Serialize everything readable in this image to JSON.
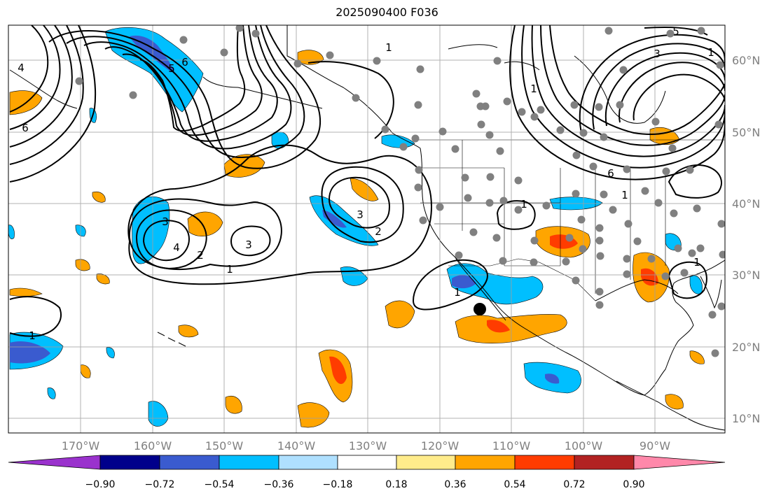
{
  "title": "2025090400 F036",
  "map": {
    "projection": "lat-lon",
    "lon_range": [
      -180,
      -80
    ],
    "lat_range": [
      8,
      65
    ],
    "lon_ticks": [
      "170°W",
      "160°W",
      "150°W",
      "140°W",
      "130°W",
      "120°W",
      "110°W",
      "100°W",
      "90°W"
    ],
    "lat_ticks": [
      "60°N",
      "50°N",
      "40°N",
      "30°N",
      "20°N",
      "10°N"
    ],
    "gridlines": true,
    "marker": {
      "lon": -114,
      "lat": 25.2,
      "color": "#000000"
    },
    "station_dot_color": "#808080"
  },
  "contour_labels": [
    "1",
    "2",
    "3",
    "4",
    "5",
    "6"
  ],
  "colorbar": {
    "tick_labels": [
      "−0.90",
      "−0.72",
      "−0.54",
      "−0.36",
      "−0.18",
      "0.18",
      "0.36",
      "0.54",
      "0.72",
      "0.90"
    ],
    "colors": [
      "#9a32cd",
      "#00008b",
      "#3a5bcf",
      "#00bfff",
      "#afe0ff",
      "#ffffff",
      "#ffec8b",
      "#ffa500",
      "#ff3c00",
      "#b22222",
      "#ff88aa"
    ]
  }
}
